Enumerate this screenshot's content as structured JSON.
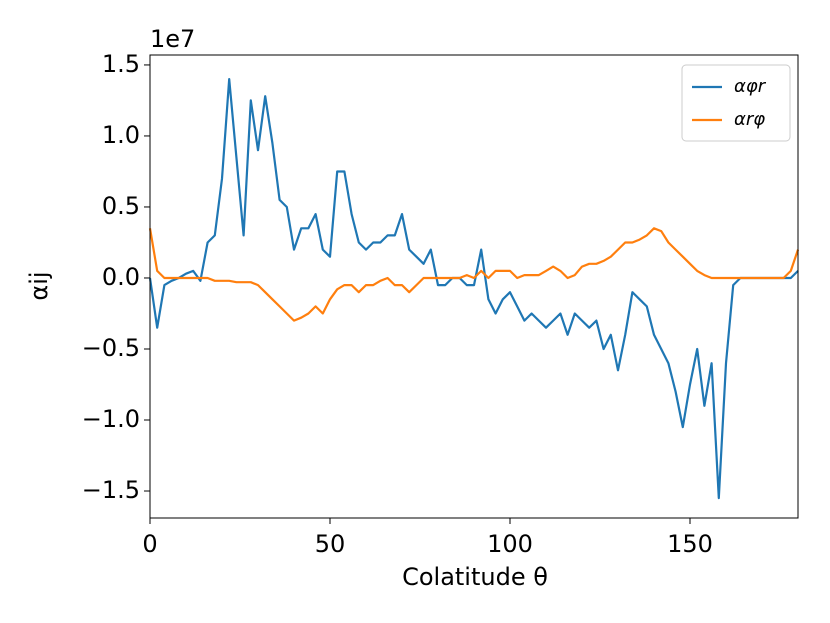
{
  "chart_data": {
    "type": "line",
    "xlabel": "Colatitude θ",
    "ylabel": "αij",
    "y_offset_label": "1e7",
    "x": [
      0,
      2,
      4,
      6,
      8,
      10,
      12,
      14,
      16,
      18,
      20,
      22,
      24,
      26,
      28,
      30,
      32,
      34,
      36,
      38,
      40,
      42,
      44,
      46,
      48,
      50,
      52,
      54,
      56,
      58,
      60,
      62,
      64,
      66,
      68,
      70,
      72,
      74,
      76,
      78,
      80,
      82,
      84,
      86,
      88,
      90,
      92,
      94,
      96,
      98,
      100,
      102,
      104,
      106,
      108,
      110,
      112,
      114,
      116,
      118,
      120,
      122,
      124,
      126,
      128,
      130,
      132,
      134,
      136,
      138,
      140,
      142,
      144,
      146,
      148,
      150,
      152,
      154,
      156,
      158,
      160,
      162,
      164,
      166,
      168,
      170,
      172,
      174,
      176,
      178,
      180
    ],
    "series": [
      {
        "name": "αφr",
        "color": "#1f77b4",
        "values": [
          0,
          -0.35,
          -0.05,
          -0.02,
          0,
          0.03,
          0.05,
          -0.02,
          0.25,
          0.3,
          0.7,
          1.4,
          0.85,
          0.3,
          1.25,
          0.9,
          1.28,
          0.95,
          0.55,
          0.5,
          0.2,
          0.35,
          0.35,
          0.45,
          0.2,
          0.15,
          0.75,
          0.75,
          0.45,
          0.25,
          0.2,
          0.25,
          0.25,
          0.3,
          0.3,
          0.45,
          0.2,
          0.15,
          0.1,
          0.2,
          -0.05,
          -0.05,
          0,
          0,
          -0.05,
          -0.05,
          0.2,
          -0.15,
          -0.25,
          -0.15,
          -0.1,
          -0.2,
          -0.3,
          -0.25,
          -0.3,
          -0.35,
          -0.3,
          -0.25,
          -0.4,
          -0.25,
          -0.3,
          -0.35,
          -0.3,
          -0.5,
          -0.4,
          -0.65,
          -0.4,
          -0.1,
          -0.15,
          -0.2,
          -0.4,
          -0.5,
          -0.6,
          -0.8,
          -1.05,
          -0.75,
          -0.5,
          -0.9,
          -0.6,
          -1.55,
          -0.6,
          -0.05,
          0,
          0,
          0,
          0,
          0,
          0,
          0,
          0,
          0.05
        ]
      },
      {
        "name": "αrφ",
        "color": "#ff7f0e",
        "values": [
          0.35,
          0.05,
          0,
          0,
          0,
          0,
          0,
          0,
          0,
          -0.02,
          -0.02,
          -0.02,
          -0.03,
          -0.03,
          -0.03,
          -0.05,
          -0.1,
          -0.15,
          -0.2,
          -0.25,
          -0.3,
          -0.28,
          -0.25,
          -0.2,
          -0.25,
          -0.15,
          -0.08,
          -0.05,
          -0.05,
          -0.1,
          -0.05,
          -0.05,
          -0.02,
          0,
          -0.05,
          -0.05,
          -0.1,
          -0.05,
          0,
          0,
          0,
          0,
          0,
          0,
          0.02,
          0,
          0.05,
          0,
          0.05,
          0.05,
          0.05,
          0,
          0.02,
          0.02,
          0.02,
          0.05,
          0.08,
          0.05,
          0,
          0.02,
          0.08,
          0.1,
          0.1,
          0.12,
          0.15,
          0.2,
          0.25,
          0.25,
          0.27,
          0.3,
          0.35,
          0.33,
          0.25,
          0.2,
          0.15,
          0.1,
          0.05,
          0.02,
          0,
          0,
          0,
          0,
          0,
          0,
          0,
          0,
          0,
          0,
          0,
          0.05,
          0.2
        ]
      }
    ],
    "xlim": [
      0,
      180
    ],
    "xticks": [
      0,
      50,
      100,
      150
    ],
    "ylim": [
      -1.69,
      1.57
    ],
    "yticks": [
      {
        "value": -1.5,
        "label": "−1.5"
      },
      {
        "value": -1.0,
        "label": "−1.0"
      },
      {
        "value": -0.5,
        "label": "−0.5"
      },
      {
        "value": 0,
        "label": "0.0"
      },
      0.5,
      {
        "value": 1.0,
        "label": "1.0"
      },
      1.5
    ],
    "grid": false,
    "legend": "upper right"
  }
}
